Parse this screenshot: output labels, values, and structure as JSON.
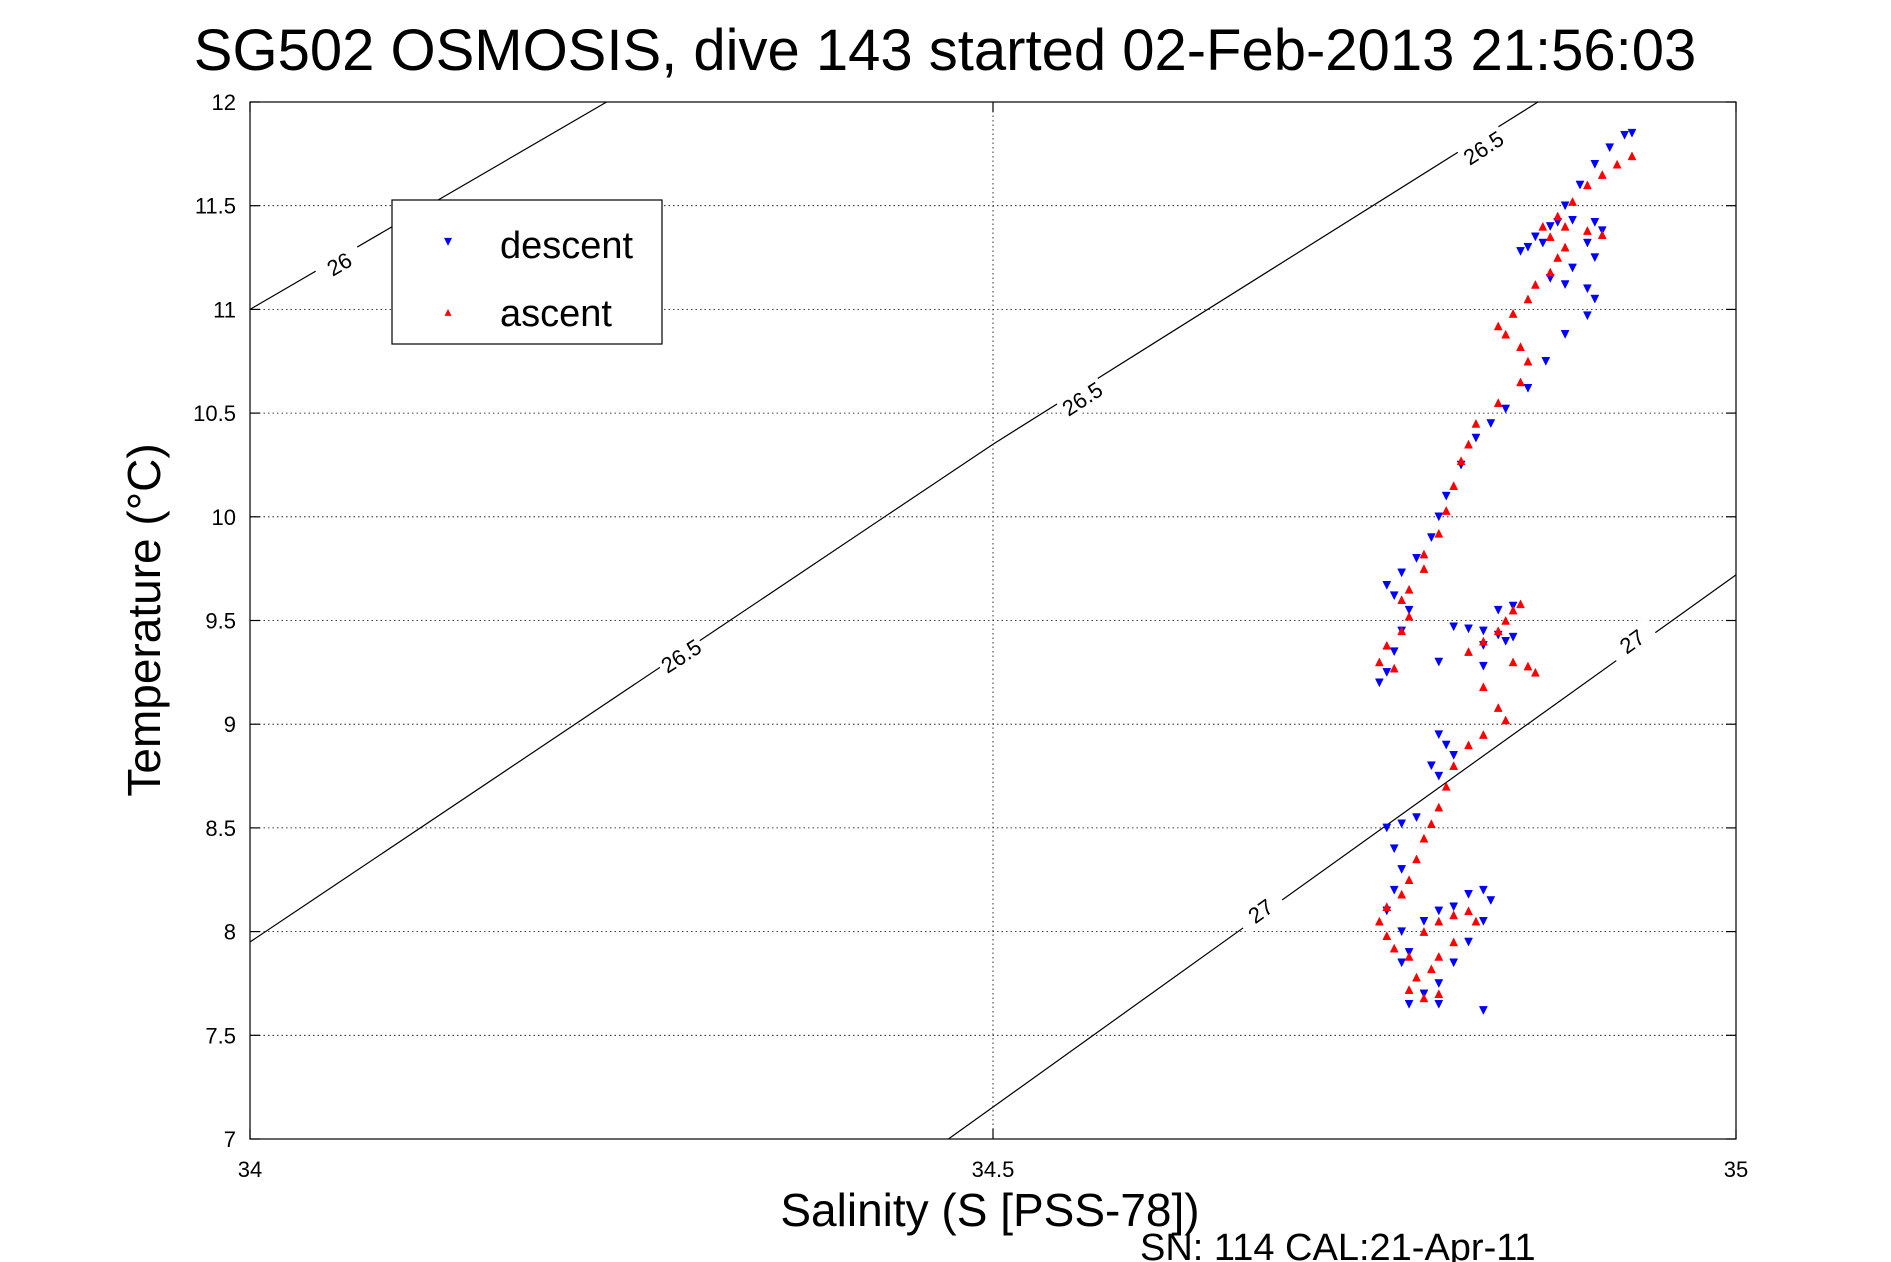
{
  "chart_data": {
    "type": "scatter",
    "title": "SG502 OSMOSIS, dive 143 started 02-Feb-2013 21:56:03",
    "xlabel": "Salinity (S [PSS-78])",
    "ylabel": "Temperature (°C)",
    "xlim": [
      34,
      35
    ],
    "ylim": [
      7,
      12
    ],
    "grid": true,
    "x_ticks": [
      "34",
      "34.5",
      "35"
    ],
    "y_ticks": [
      "7",
      "7.5",
      "8",
      "8.5",
      "9",
      "9.5",
      "10",
      "10.5",
      "11",
      "11.5",
      "12"
    ],
    "x_tick_values": [
      34,
      34.5,
      35
    ],
    "y_tick_values": [
      7,
      7.5,
      8,
      8.5,
      9,
      9.5,
      10,
      10.5,
      11,
      11.5,
      12
    ],
    "legend_placement": "top-left",
    "footer": "SN: 114  CAL:21-Apr-11",
    "contours": [
      {
        "label": "26",
        "line": [
          [
            34.0,
            11.0
          ],
          [
            34.24,
            12.0
          ]
        ],
        "label_pos": [
          34.06,
          11.22
        ]
      },
      {
        "label": "26.5",
        "line": [
          [
            34.0,
            7.95
          ],
          [
            34.5,
            10.35
          ],
          [
            35.0,
            12.6
          ]
        ],
        "label_pos": [
          [
            34.29,
            9.33
          ],
          [
            34.56,
            10.57
          ],
          [
            34.83,
            11.78
          ]
        ]
      },
      {
        "label": "27",
        "line": [
          [
            34.47,
            7.0
          ],
          [
            35.0,
            9.72
          ]
        ],
        "label_pos": [
          [
            34.68,
            8.1
          ],
          [
            34.93,
            9.4
          ]
        ]
      }
    ],
    "series": [
      {
        "name": "descent",
        "color": "#0000ff",
        "marker": "triangle-down",
        "points": [
          [
            34.76,
            9.2
          ],
          [
            34.765,
            9.25
          ],
          [
            34.77,
            9.35
          ],
          [
            34.775,
            9.45
          ],
          [
            34.78,
            9.55
          ],
          [
            34.77,
            9.62
          ],
          [
            34.765,
            9.67
          ],
          [
            34.775,
            9.73
          ],
          [
            34.785,
            9.8
          ],
          [
            34.795,
            9.9
          ],
          [
            34.8,
            10.0
          ],
          [
            34.805,
            10.1
          ],
          [
            34.815,
            10.25
          ],
          [
            34.825,
            10.38
          ],
          [
            34.835,
            10.45
          ],
          [
            34.845,
            10.52
          ],
          [
            34.86,
            10.62
          ],
          [
            34.872,
            10.75
          ],
          [
            34.885,
            10.88
          ],
          [
            34.9,
            10.97
          ],
          [
            34.905,
            11.05
          ],
          [
            34.9,
            11.1
          ],
          [
            34.885,
            11.12
          ],
          [
            34.875,
            11.15
          ],
          [
            34.89,
            11.2
          ],
          [
            34.905,
            11.25
          ],
          [
            34.9,
            11.32
          ],
          [
            34.91,
            11.38
          ],
          [
            34.905,
            11.42
          ],
          [
            34.89,
            11.43
          ],
          [
            34.875,
            11.4
          ],
          [
            34.865,
            11.35
          ],
          [
            34.86,
            11.3
          ],
          [
            34.855,
            11.28
          ],
          [
            34.87,
            11.32
          ],
          [
            34.88,
            11.42
          ],
          [
            34.885,
            11.5
          ],
          [
            34.895,
            11.6
          ],
          [
            34.905,
            11.7
          ],
          [
            34.915,
            11.78
          ],
          [
            34.925,
            11.84
          ],
          [
            34.93,
            11.85
          ],
          [
            34.81,
            9.47
          ],
          [
            34.82,
            9.46
          ],
          [
            34.83,
            9.45
          ],
          [
            34.84,
            9.43
          ],
          [
            34.85,
            9.42
          ],
          [
            34.845,
            9.4
          ],
          [
            34.83,
            9.38
          ],
          [
            34.84,
            9.55
          ],
          [
            34.85,
            9.57
          ],
          [
            34.8,
            9.3
          ],
          [
            34.83,
            9.28
          ],
          [
            34.8,
            8.95
          ],
          [
            34.805,
            8.9
          ],
          [
            34.81,
            8.85
          ],
          [
            34.795,
            8.8
          ],
          [
            34.8,
            8.75
          ],
          [
            34.785,
            8.55
          ],
          [
            34.775,
            8.52
          ],
          [
            34.765,
            8.5
          ],
          [
            34.77,
            8.4
          ],
          [
            34.775,
            8.3
          ],
          [
            34.77,
            8.2
          ],
          [
            34.765,
            8.1
          ],
          [
            34.775,
            8.0
          ],
          [
            34.78,
            7.9
          ],
          [
            34.775,
            7.85
          ],
          [
            34.79,
            8.05
          ],
          [
            34.8,
            8.1
          ],
          [
            34.81,
            8.12
          ],
          [
            34.82,
            8.18
          ],
          [
            34.83,
            8.2
          ],
          [
            34.835,
            8.15
          ],
          [
            34.83,
            8.05
          ],
          [
            34.82,
            7.95
          ],
          [
            34.81,
            7.85
          ],
          [
            34.8,
            7.75
          ],
          [
            34.79,
            7.7
          ],
          [
            34.78,
            7.65
          ],
          [
            34.8,
            7.65
          ],
          [
            34.83,
            7.62
          ]
        ]
      },
      {
        "name": "ascent",
        "color": "#ff0000",
        "marker": "triangle-up",
        "points": [
          [
            34.77,
            9.27
          ],
          [
            34.76,
            9.3
          ],
          [
            34.765,
            9.38
          ],
          [
            34.775,
            9.45
          ],
          [
            34.78,
            9.52
          ],
          [
            34.775,
            9.6
          ],
          [
            34.78,
            9.65
          ],
          [
            34.79,
            9.75
          ],
          [
            34.79,
            9.82
          ],
          [
            34.8,
            9.92
          ],
          [
            34.805,
            10.03
          ],
          [
            34.81,
            10.15
          ],
          [
            34.815,
            10.27
          ],
          [
            34.82,
            10.35
          ],
          [
            34.825,
            10.45
          ],
          [
            34.84,
            10.55
          ],
          [
            34.855,
            10.65
          ],
          [
            34.86,
            10.75
          ],
          [
            34.855,
            10.82
          ],
          [
            34.845,
            10.88
          ],
          [
            34.84,
            10.92
          ],
          [
            34.85,
            10.98
          ],
          [
            34.86,
            11.05
          ],
          [
            34.865,
            11.12
          ],
          [
            34.875,
            11.18
          ],
          [
            34.88,
            11.25
          ],
          [
            34.885,
            11.3
          ],
          [
            34.875,
            11.35
          ],
          [
            34.87,
            11.4
          ],
          [
            34.88,
            11.45
          ],
          [
            34.89,
            11.52
          ],
          [
            34.9,
            11.6
          ],
          [
            34.91,
            11.65
          ],
          [
            34.92,
            11.7
          ],
          [
            34.93,
            11.74
          ],
          [
            34.885,
            11.4
          ],
          [
            34.9,
            11.38
          ],
          [
            34.91,
            11.36
          ],
          [
            34.82,
            9.35
          ],
          [
            34.83,
            9.4
          ],
          [
            34.84,
            9.45
          ],
          [
            34.845,
            9.5
          ],
          [
            34.85,
            9.55
          ],
          [
            34.855,
            9.58
          ],
          [
            34.85,
            9.3
          ],
          [
            34.86,
            9.28
          ],
          [
            34.865,
            9.25
          ],
          [
            34.83,
            9.18
          ],
          [
            34.84,
            9.08
          ],
          [
            34.845,
            9.02
          ],
          [
            34.83,
            8.95
          ],
          [
            34.82,
            8.9
          ],
          [
            34.81,
            8.8
          ],
          [
            34.805,
            8.7
          ],
          [
            34.8,
            8.6
          ],
          [
            34.795,
            8.52
          ],
          [
            34.79,
            8.45
          ],
          [
            34.785,
            8.35
          ],
          [
            34.78,
            8.25
          ],
          [
            34.775,
            8.18
          ],
          [
            34.765,
            8.12
          ],
          [
            34.76,
            8.05
          ],
          [
            34.765,
            7.98
          ],
          [
            34.77,
            7.92
          ],
          [
            34.78,
            7.88
          ],
          [
            34.79,
            8.0
          ],
          [
            34.8,
            8.05
          ],
          [
            34.81,
            8.08
          ],
          [
            34.82,
            8.1
          ],
          [
            34.825,
            8.05
          ],
          [
            34.81,
            7.95
          ],
          [
            34.8,
            7.88
          ],
          [
            34.795,
            7.82
          ],
          [
            34.785,
            7.78
          ],
          [
            34.78,
            7.72
          ],
          [
            34.79,
            7.68
          ],
          [
            34.8,
            7.7
          ]
        ]
      }
    ]
  }
}
